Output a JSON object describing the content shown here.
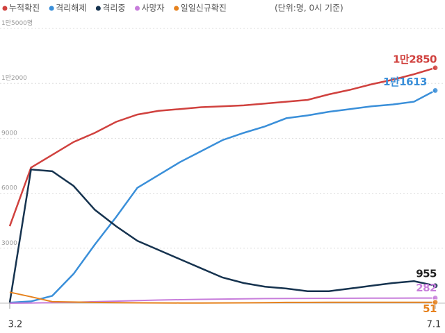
{
  "chart_data": {
    "type": "line",
    "subtitle": "(단위:명, 0시 기준)",
    "categories": [
      "3.2",
      null,
      null,
      null,
      null,
      null,
      null,
      null,
      null,
      null,
      null,
      null,
      null,
      null,
      null,
      null,
      null,
      null,
      null,
      null,
      "7.1"
    ],
    "ylim": [
      0,
      15000
    ],
    "yticks": [
      3000,
      6000,
      9000,
      {
        "value": 12000,
        "label": "1만2000"
      },
      {
        "value": 15000,
        "label": "1만5000명"
      }
    ],
    "grid": true,
    "series": [
      {
        "name": "누적확진",
        "color": "#d0413e",
        "values": [
          4200,
          7400,
          8100,
          8800,
          9300,
          9900,
          10300,
          10500,
          10600,
          10700,
          10750,
          10800,
          10900,
          11000,
          11100,
          11400,
          11650,
          11950,
          12200,
          12500,
          12850
        ],
        "value_labels": [
          null,
          null,
          null,
          null,
          null,
          null,
          null,
          null,
          null,
          null,
          null,
          null,
          null,
          null,
          null,
          null,
          null,
          null,
          null,
          null,
          "1만2850"
        ]
      },
      {
        "name": "격리해제",
        "color": "#3a8fd9",
        "values": [
          30,
          100,
          400,
          1600,
          3200,
          4700,
          6300,
          7000,
          7700,
          8300,
          8900,
          9300,
          9650,
          10100,
          10250,
          10450,
          10600,
          10750,
          10850,
          11000,
          11613
        ],
        "value_labels": [
          null,
          null,
          null,
          null,
          null,
          null,
          null,
          null,
          null,
          null,
          null,
          null,
          null,
          null,
          null,
          null,
          null,
          null,
          null,
          null,
          "1만1613"
        ]
      },
      {
        "name": "격리중",
        "color": "#16334f",
        "values": [
          30,
          7300,
          7200,
          6400,
          5100,
          4200,
          3400,
          2900,
          2400,
          1900,
          1400,
          1100,
          900,
          800,
          650,
          650,
          800,
          950,
          1100,
          1200,
          955
        ]
      },
      {
        "name": "사망자",
        "color": "#c77ddb",
        "values": [
          0,
          10,
          30,
          50,
          80,
          110,
          140,
          170,
          190,
          210,
          225,
          240,
          250,
          256,
          262,
          266,
          270,
          274,
          277,
          280,
          282
        ]
      },
      {
        "name": "일일신규확진",
        "color": "#e6821e",
        "values": [
          600,
          350,
          80,
          60,
          40,
          30,
          20,
          15,
          10,
          10,
          15,
          20,
          30,
          40,
          40,
          45,
          50,
          45,
          45,
          50,
          51
        ]
      }
    ]
  }
}
